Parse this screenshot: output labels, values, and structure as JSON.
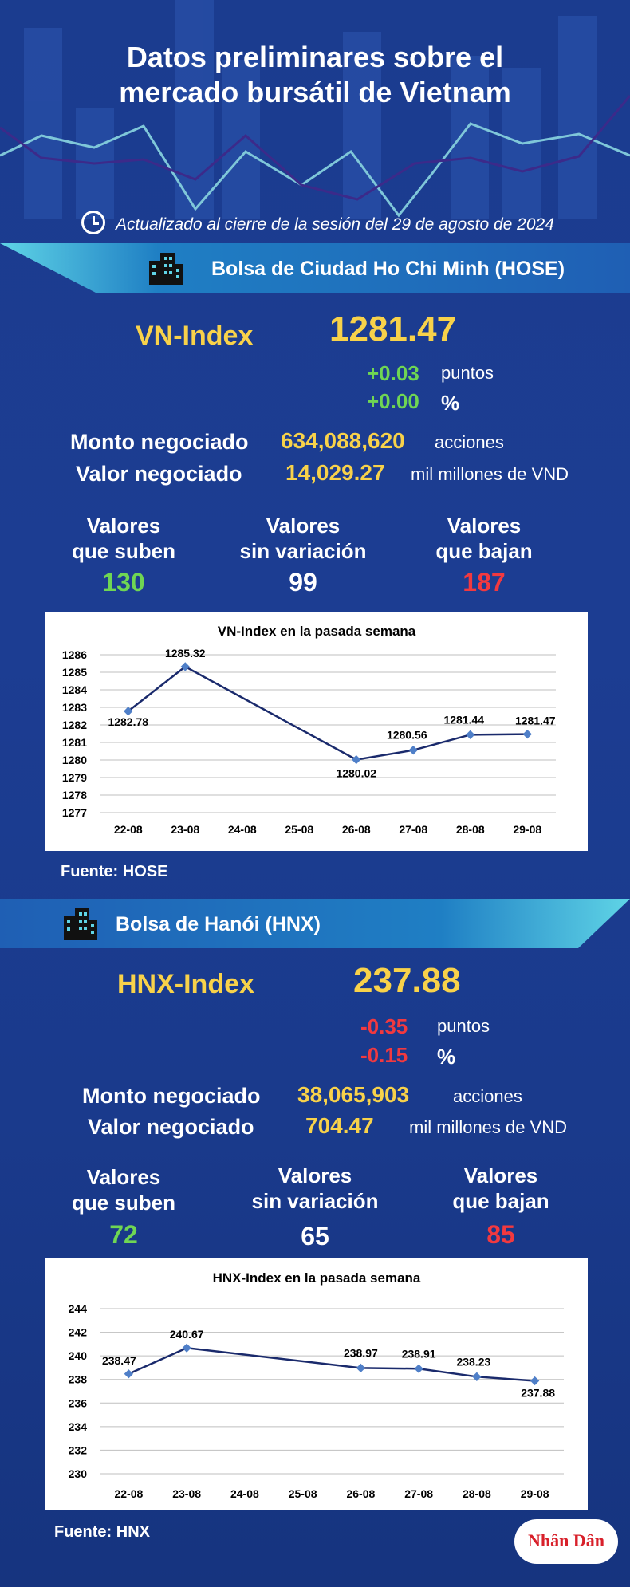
{
  "header": {
    "title_line1": "Datos preliminares sobre el",
    "title_line2": "mercado bursátil de Vietnam",
    "updated": "Actualizado al cierre de la sesión del 29 de agosto de 2024"
  },
  "hose": {
    "exchange": "Bolsa de Ciudad Ho Chi Minh (HOSE)",
    "index_name": "VN-Index",
    "index_value": "1281.47",
    "change_points": "+0.03",
    "change_points_unit": "puntos",
    "change_pct": "+0.00",
    "change_pct_unit": "%",
    "volume_label": "Monto negociado",
    "volume": "634,088,620",
    "volume_unit": "acciones",
    "value_label": "Valor negociado",
    "value": "14,029.27",
    "value_unit": "mil millones de VND",
    "up_label_1": "Valores",
    "up_label_2": "que suben",
    "up_count": "130",
    "flat_label_1": "Valores",
    "flat_label_2": "sin variación",
    "flat_count": "99",
    "down_label_1": "Valores",
    "down_label_2": "que bajan",
    "down_count": "187",
    "source": "Fuente: HOSE"
  },
  "hnx": {
    "exchange": "Bolsa de Hanói (HNX)",
    "index_name": "HNX-Index",
    "index_value": "237.88",
    "change_points": "-0.35",
    "change_points_unit": "puntos",
    "change_pct": "-0.15",
    "change_pct_unit": "%",
    "volume_label": "Monto negociado",
    "volume": "38,065,903",
    "volume_unit": "acciones",
    "value_label": "Valor negociado",
    "value": "704.47",
    "value_unit": "mil millones de VND",
    "up_label_1": "Valores",
    "up_label_2": "que suben",
    "up_count": "72",
    "flat_label_1": "Valores",
    "flat_label_2": "sin variación",
    "flat_count": "65",
    "down_label_1": "Valores",
    "down_label_2": "que bajan",
    "down_count": "85",
    "source": "Fuente:  HNX"
  },
  "logo_text": "Nhân Dân",
  "colors": {
    "gold": "#f8d24a",
    "up": "#6fd653",
    "down": "#f2393f",
    "line": "#1a2a6c",
    "marker": "#4f7fc8"
  },
  "chart_data": [
    {
      "type": "line",
      "title": "VN-Index en la pasada semana",
      "categories": [
        "22-08",
        "23-08",
        "24-08",
        "25-08",
        "26-08",
        "27-08",
        "28-08",
        "29-08"
      ],
      "points": [
        {
          "x": "22-08",
          "y": 1282.78
        },
        {
          "x": "23-08",
          "y": 1285.32
        },
        {
          "x": "26-08",
          "y": 1280.02
        },
        {
          "x": "27-08",
          "y": 1280.56
        },
        {
          "x": "28-08",
          "y": 1281.44
        },
        {
          "x": "29-08",
          "y": 1281.47
        }
      ],
      "ylim": [
        1277,
        1286
      ],
      "yticks": [
        1277,
        1278,
        1279,
        1280,
        1281,
        1282,
        1283,
        1284,
        1285,
        1286
      ],
      "grid": true
    },
    {
      "type": "line",
      "title": "HNX-Index en la pasada semana",
      "categories": [
        "22-08",
        "23-08",
        "24-08",
        "25-08",
        "26-08",
        "27-08",
        "28-08",
        "29-08"
      ],
      "points": [
        {
          "x": "22-08",
          "y": 238.47
        },
        {
          "x": "23-08",
          "y": 240.67
        },
        {
          "x": "26-08",
          "y": 238.97
        },
        {
          "x": "27-08",
          "y": 238.91
        },
        {
          "x": "28-08",
          "y": 238.23
        },
        {
          "x": "29-08",
          "y": 237.88
        }
      ],
      "ylim": [
        230,
        244
      ],
      "yticks": [
        230,
        232,
        234,
        236,
        238,
        240,
        242,
        244
      ],
      "grid": true
    }
  ]
}
